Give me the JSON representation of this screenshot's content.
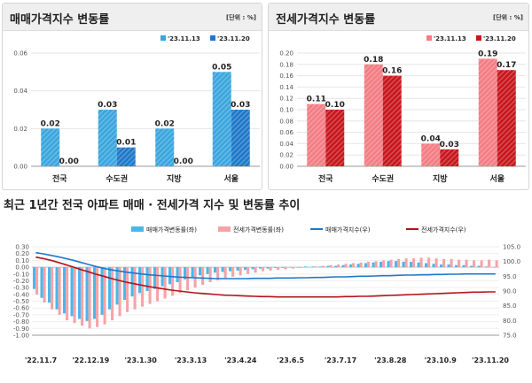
{
  "panel_left": {
    "title": "매매가격지수 변동률",
    "unit": "[단위 : %]"
  },
  "panel_right": {
    "title": "전세가격지수 변동률",
    "unit": "[단위 : %]"
  },
  "bottom": {
    "title": "최근 1년간 전국 아파트 매매 · 전세가격 지수 및 변동률 추이"
  },
  "colors": {
    "sale_prev": "#3aa6dd",
    "sale_curr": "#1f78c8",
    "jeonse_prev": "#f47c84",
    "jeonse_curr": "#c8161d",
    "sale_change": "#48b8ec",
    "jeonse_change": "#f5a3a8",
    "sale_index": "#1f78c8",
    "jeonse_index": "#b5121b"
  },
  "chart_data": [
    {
      "type": "bar",
      "categories": [
        "전국",
        "수도권",
        "지방",
        "서울"
      ],
      "series": [
        {
          "name": "'23.11.13",
          "values": [
            0.02,
            0.03,
            0.02,
            0.05
          ]
        },
        {
          "name": "'23.11.20",
          "values": [
            0.0,
            0.01,
            0.0,
            0.03
          ]
        }
      ],
      "data_labels": [
        [
          "0.02",
          "0.03",
          "0.02",
          "0.05"
        ],
        [
          "0.00",
          "0.01",
          "0.00",
          "0.03"
        ]
      ],
      "ylim": [
        0,
        0.06
      ],
      "yticks": [
        "0.00",
        "0.02",
        "0.04",
        "0.06"
      ],
      "grid": true,
      "legend": "top-right"
    },
    {
      "type": "bar",
      "categories": [
        "전국",
        "수도권",
        "지방",
        "서울"
      ],
      "series": [
        {
          "name": "'23.11.13",
          "values": [
            0.11,
            0.18,
            0.04,
            0.19
          ]
        },
        {
          "name": "'23.11.20",
          "values": [
            0.1,
            0.16,
            0.03,
            0.17
          ]
        }
      ],
      "data_labels": [
        [
          "0.11",
          "0.18",
          "0.04",
          "0.19"
        ],
        [
          "0.10",
          "0.16",
          "0.03",
          "0.17"
        ]
      ],
      "ylim": [
        0,
        0.2
      ],
      "yticks": [
        "0.00",
        "0.02",
        "0.04",
        "0.06",
        "0.08",
        "0.10",
        "0.12",
        "0.14",
        "0.16",
        "0.18",
        "0.20"
      ],
      "grid": true,
      "legend": "top-right"
    },
    {
      "type": "bar+line",
      "x_ticks": [
        "'22.11.7",
        "'22.12.19",
        "'23.1.30",
        "'23.3.13",
        "'23.4.24",
        "'23.6.5",
        "'23.7.17",
        "'23.8.28",
        "'23.10.9",
        "'23.11.20"
      ],
      "left_axis": {
        "ylim": [
          -1.0,
          0.3
        ],
        "ticks": [
          "0.30",
          "0.20",
          "0.10",
          "0.00",
          "-0.10",
          "-0.20",
          "-0.30",
          "-0.40",
          "-0.50",
          "-0.60",
          "-0.70",
          "-0.80",
          "-0.90",
          "-1.00"
        ]
      },
      "right_axis": {
        "ylim": [
          75.0,
          105.0
        ],
        "ticks": [
          "105.0",
          "100.0",
          "95.0",
          "90.0",
          "85.0",
          "80.0",
          "75.0"
        ]
      },
      "series": [
        {
          "name": "매매가격변동률(좌)",
          "kind": "bar",
          "axis": "left",
          "values": [
            -0.32,
            -0.45,
            -0.52,
            -0.62,
            -0.68,
            -0.72,
            -0.76,
            -0.79,
            -0.76,
            -0.7,
            -0.62,
            -0.55,
            -0.48,
            -0.43,
            -0.38,
            -0.35,
            -0.32,
            -0.28,
            -0.25,
            -0.22,
            -0.18,
            -0.15,
            -0.12,
            -0.1,
            -0.08,
            -0.07,
            -0.06,
            -0.05,
            -0.04,
            -0.03,
            -0.02,
            -0.02,
            -0.01,
            -0.01,
            0.0,
            0.0,
            0.01,
            0.01,
            0.01,
            0.02,
            0.02,
            0.03,
            0.04,
            0.05,
            0.06,
            0.07,
            0.08,
            0.09,
            0.09,
            0.08,
            0.08,
            0.07,
            0.06,
            0.05,
            0.04,
            0.04,
            0.03,
            0.03,
            0.02,
            0.02,
            0.01,
            0.0
          ]
        },
        {
          "name": "전세가격변동률(좌)",
          "kind": "bar",
          "axis": "left",
          "values": [
            -0.4,
            -0.52,
            -0.62,
            -0.7,
            -0.78,
            -0.82,
            -0.86,
            -0.9,
            -0.88,
            -0.84,
            -0.78,
            -0.72,
            -0.66,
            -0.62,
            -0.58,
            -0.54,
            -0.5,
            -0.46,
            -0.42,
            -0.38,
            -0.34,
            -0.3,
            -0.26,
            -0.22,
            -0.19,
            -0.16,
            -0.14,
            -0.12,
            -0.1,
            -0.08,
            -0.06,
            -0.05,
            -0.04,
            -0.03,
            -0.02,
            -0.01,
            0.0,
            0.01,
            0.02,
            0.03,
            0.04,
            0.05,
            0.06,
            0.07,
            0.08,
            0.09,
            0.1,
            0.11,
            0.12,
            0.13,
            0.13,
            0.14,
            0.14,
            0.13,
            0.12,
            0.12,
            0.11,
            0.11,
            0.1,
            0.1,
            0.11,
            0.1
          ]
        },
        {
          "name": "매매가격지수(우)",
          "kind": "line",
          "axis": "right",
          "values": [
            103.0,
            102.6,
            102.1,
            101.6,
            101.0,
            100.4,
            99.7,
            99.0,
            98.3,
            97.7,
            97.2,
            96.8,
            96.4,
            96.1,
            95.8,
            95.5,
            95.3,
            95.1,
            94.9,
            94.7,
            94.6,
            94.5,
            94.4,
            94.3,
            94.2,
            94.2,
            94.2,
            94.2,
            94.2,
            94.3,
            94.3,
            94.3,
            94.4,
            94.4,
            94.4,
            94.5,
            94.5,
            94.6,
            94.6,
            94.7,
            94.8,
            94.8,
            94.9,
            95.0,
            95.0,
            95.1,
            95.2,
            95.2,
            95.3,
            95.4,
            95.4,
            95.5,
            95.5,
            95.6,
            95.6,
            95.7,
            95.7,
            95.8,
            95.8,
            95.8,
            95.8,
            95.8
          ]
        },
        {
          "name": "전세가격지수(우)",
          "kind": "line",
          "axis": "right",
          "values": [
            101.5,
            101.0,
            100.4,
            99.7,
            98.9,
            98.1,
            97.3,
            96.5,
            95.7,
            95.0,
            94.3,
            93.6,
            93.0,
            92.5,
            92.0,
            91.5,
            91.1,
            90.7,
            90.3,
            90.0,
            89.7,
            89.4,
            89.2,
            89.0,
            88.8,
            88.6,
            88.5,
            88.4,
            88.3,
            88.2,
            88.1,
            88.1,
            88.0,
            88.0,
            88.0,
            88.0,
            88.0,
            88.0,
            88.0,
            88.0,
            88.0,
            88.1,
            88.1,
            88.2,
            88.2,
            88.3,
            88.4,
            88.5,
            88.6,
            88.7,
            88.8,
            88.9,
            89.0,
            89.1,
            89.2,
            89.3,
            89.4,
            89.5,
            89.6,
            89.6,
            89.7,
            89.7
          ]
        }
      ],
      "legend": "top"
    }
  ]
}
